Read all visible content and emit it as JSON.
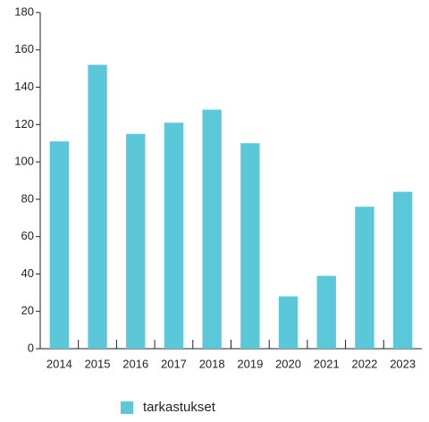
{
  "chart_data": {
    "type": "bar",
    "categories": [
      "2014",
      "2015",
      "2016",
      "2017",
      "2018",
      "2019",
      "2020",
      "2021",
      "2022",
      "2023"
    ],
    "series": [
      {
        "name": "tarkastukset",
        "color": "#5bc8d9",
        "values": [
          111,
          152,
          115,
          121,
          128,
          110,
          28,
          39,
          76,
          84
        ]
      }
    ],
    "ylim": [
      0,
      180
    ],
    "yticks": [
      0,
      20,
      40,
      60,
      80,
      100,
      120,
      140,
      160,
      180
    ],
    "grid": false,
    "legend": "bottom"
  }
}
